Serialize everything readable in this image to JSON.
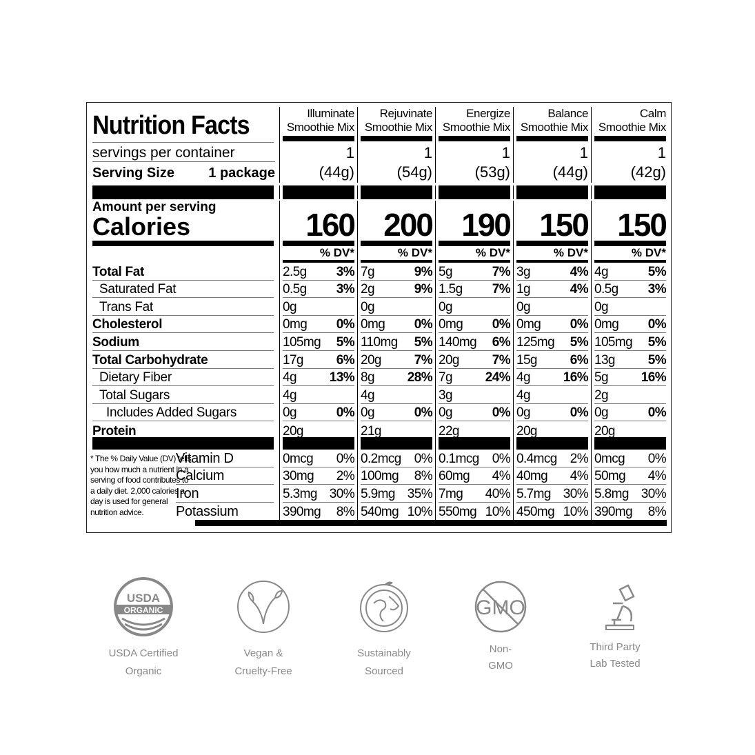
{
  "title": "Nutrition Facts",
  "servings_label": "servings per container",
  "serving_size_label": "Serving Size",
  "serving_size_value": "1 package",
  "amount_label": "Amount per serving",
  "calories_label": "Calories",
  "dv_header": "% DV*",
  "products": [
    {
      "name1": "Illuminate",
      "name2": "Smoothie Mix",
      "servings": "1",
      "size": "(44g)",
      "calories": "160"
    },
    {
      "name1": "Rejuvinate",
      "name2": "Smoothie Mix",
      "servings": "1",
      "size": "(54g)",
      "calories": "200"
    },
    {
      "name1": "Energize",
      "name2": "Smoothie Mix",
      "servings": "1",
      "size": "(53g)",
      "calories": "190"
    },
    {
      "name1": "Balance",
      "name2": "Smoothie Mix",
      "servings": "1",
      "size": "(44g)",
      "calories": "150"
    },
    {
      "name1": "Calm",
      "name2": "Smoothie Mix",
      "servings": "1",
      "size": "(42g)",
      "calories": "150"
    }
  ],
  "nutrients": [
    {
      "label": "Total Fat",
      "bold": true,
      "indent": 0,
      "values": [
        [
          "2.5g",
          "3%"
        ],
        [
          "7g",
          "9%"
        ],
        [
          "5g",
          "7%"
        ],
        [
          "3g",
          "4%"
        ],
        [
          "4g",
          "5%"
        ]
      ]
    },
    {
      "label": "Saturated Fat",
      "bold": false,
      "indent": 1,
      "values": [
        [
          "0.5g",
          "3%"
        ],
        [
          "2g",
          "9%"
        ],
        [
          "1.5g",
          "7%"
        ],
        [
          "1g",
          "4%"
        ],
        [
          "0.5g",
          "3%"
        ]
      ]
    },
    {
      "label": "Trans Fat",
      "bold": false,
      "indent": 1,
      "values": [
        [
          "0g",
          ""
        ],
        [
          "0g",
          ""
        ],
        [
          "0g",
          ""
        ],
        [
          "0g",
          ""
        ],
        [
          "0g",
          ""
        ]
      ]
    },
    {
      "label": "Cholesterol",
      "bold": true,
      "indent": 0,
      "values": [
        [
          "0mg",
          "0%"
        ],
        [
          "0mg",
          "0%"
        ],
        [
          "0mg",
          "0%"
        ],
        [
          "0mg",
          "0%"
        ],
        [
          "0mg",
          "0%"
        ]
      ]
    },
    {
      "label": "Sodium",
      "bold": true,
      "indent": 0,
      "values": [
        [
          "105mg",
          "5%"
        ],
        [
          "110mg",
          "5%"
        ],
        [
          "140mg",
          "6%"
        ],
        [
          "125mg",
          "5%"
        ],
        [
          "105mg",
          "5%"
        ]
      ]
    },
    {
      "label": "Total Carbohydrate",
      "bold": true,
      "indent": 0,
      "values": [
        [
          "17g",
          "6%"
        ],
        [
          "20g",
          "7%"
        ],
        [
          "20g",
          "7%"
        ],
        [
          "15g",
          "6%"
        ],
        [
          "13g",
          "5%"
        ]
      ]
    },
    {
      "label": "Dietary Fiber",
      "bold": false,
      "indent": 1,
      "values": [
        [
          "4g",
          "13%"
        ],
        [
          "8g",
          "28%"
        ],
        [
          "7g",
          "24%"
        ],
        [
          "4g",
          "16%"
        ],
        [
          "5g",
          "16%"
        ]
      ]
    },
    {
      "label": "Total Sugars",
      "bold": false,
      "indent": 1,
      "values": [
        [
          "4g",
          ""
        ],
        [
          "4g",
          ""
        ],
        [
          "3g",
          ""
        ],
        [
          "4g",
          ""
        ],
        [
          "2g",
          ""
        ]
      ]
    },
    {
      "label": "Includes Added Sugars",
      "bold": false,
      "indent": 2,
      "values": [
        [
          "0g",
          "0%"
        ],
        [
          "0g",
          "0%"
        ],
        [
          "0g",
          "0%"
        ],
        [
          "0g",
          "0%"
        ],
        [
          "0g",
          "0%"
        ]
      ]
    },
    {
      "label": "Protein",
      "bold": true,
      "indent": 0,
      "values": [
        [
          "20g",
          ""
        ],
        [
          "21g",
          ""
        ],
        [
          "22g",
          ""
        ],
        [
          "20g",
          ""
        ],
        [
          "20g",
          ""
        ]
      ]
    }
  ],
  "vitamins": [
    {
      "label": "Vitamin D",
      "values": [
        [
          "0mcg",
          "0%"
        ],
        [
          "0.2mcg",
          "0%"
        ],
        [
          "0.1mcg",
          "0%"
        ],
        [
          "0.4mcg",
          "2%"
        ],
        [
          "0mcg",
          "0%"
        ]
      ]
    },
    {
      "label": "Calcium",
      "values": [
        [
          "30mg",
          "2%"
        ],
        [
          "100mg",
          "8%"
        ],
        [
          "60mg",
          "4%"
        ],
        [
          "40mg",
          "4%"
        ],
        [
          "50mg",
          "4%"
        ]
      ]
    },
    {
      "label": "Iron",
      "values": [
        [
          "5.3mg",
          "30%"
        ],
        [
          "5.9mg",
          "35%"
        ],
        [
          "7mg",
          "40%"
        ],
        [
          "5.7mg",
          "30%"
        ],
        [
          "5.8mg",
          "30%"
        ]
      ]
    },
    {
      "label": "Potassium",
      "values": [
        [
          "390mg",
          "8%"
        ],
        [
          "540mg",
          "10%"
        ],
        [
          "550mg",
          "10%"
        ],
        [
          "450mg",
          "10%"
        ],
        [
          "390mg",
          "8%"
        ]
      ]
    }
  ],
  "footnote": "* The % Daily Value (DV) tells you how much a nutrient in a serving of food contributes to a daily diet. 2,000 calories a day is used for general nutrition advice.",
  "badges": [
    {
      "icon": "usda-organic-icon",
      "seal_top": "USDA",
      "seal_band": "ORGANIC",
      "line1": "USDA Certified",
      "line2": "Organic"
    },
    {
      "icon": "leaf-sprout-icon",
      "line1": "Vegan &",
      "line2": "Cruelty-Free"
    },
    {
      "icon": "globe-icon",
      "line1": "Sustainably",
      "line2": "Sourced"
    },
    {
      "icon": "no-gmo-icon",
      "seal_text": "GMO",
      "line1": "Non-",
      "line2": "GMO"
    },
    {
      "icon": "microscope-icon",
      "line1": "Third Party",
      "line2": "Lab Tested"
    }
  ],
  "colors": {
    "icon_gray": "#888888",
    "text": "#000000"
  }
}
